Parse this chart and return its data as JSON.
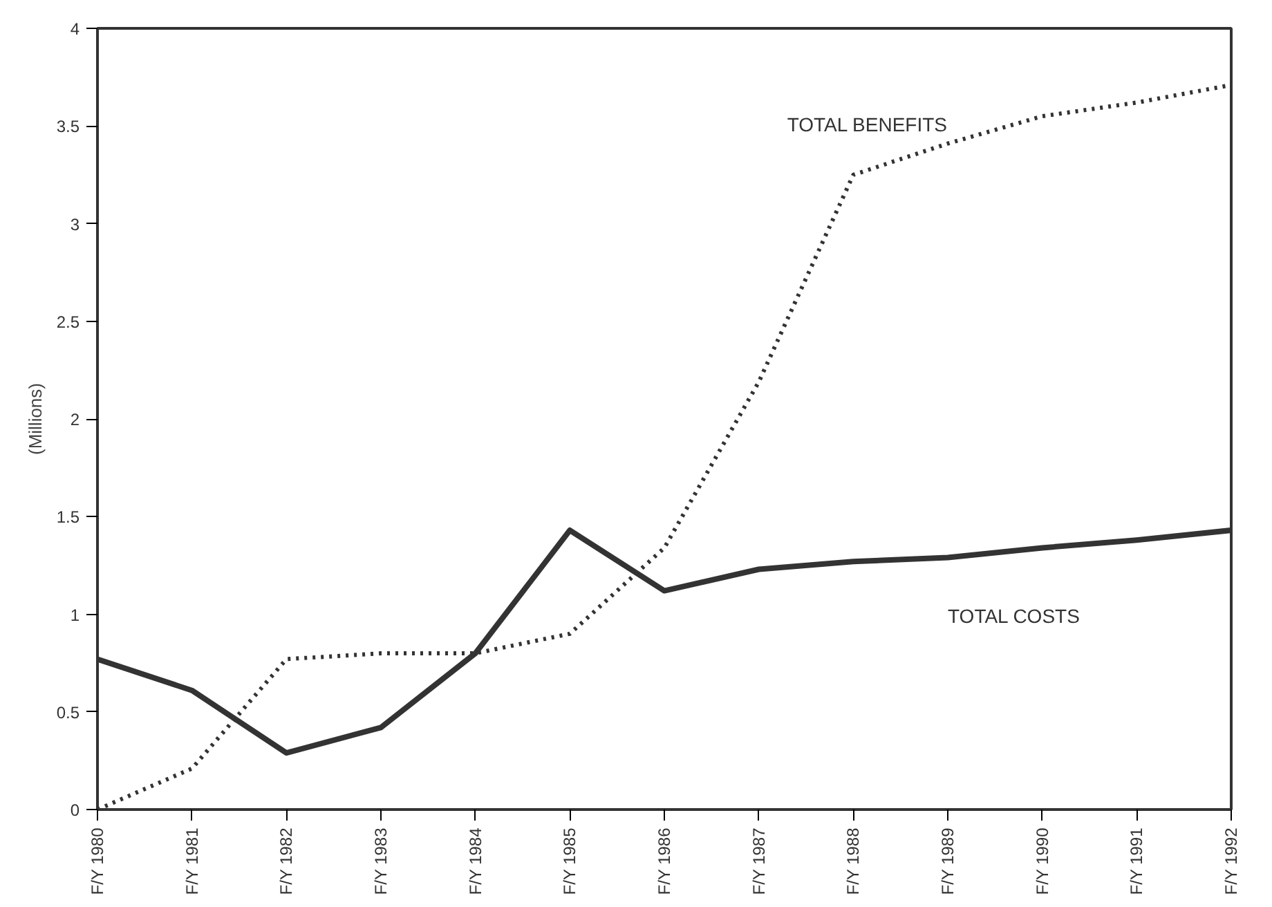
{
  "chart_data": {
    "type": "line",
    "ylabel": "(Millions)",
    "categories": [
      "F/Y 1980",
      "F/Y 1981",
      "F/Y 1982",
      "F/Y 1983",
      "F/Y 1984",
      "F/Y 1985",
      "F/Y 1986",
      "F/Y 1987",
      "F/Y 1988",
      "F/Y 1989",
      "F/Y 1990",
      "F/Y 1991",
      "F/Y 1992"
    ],
    "ylim": [
      0,
      4
    ],
    "yticks": [
      0,
      0.5,
      1,
      1.5,
      2,
      2.5,
      3,
      3.5,
      4
    ],
    "grid": false,
    "marker": "none",
    "series": [
      {
        "name": "TOTAL BENEFITS",
        "color": "#333333",
        "line_style": "dotted",
        "values": [
          0,
          0.21,
          0.77,
          0.8,
          0.8,
          0.9,
          1.34,
          2.19,
          3.25,
          3.41,
          3.55,
          3.62,
          3.71
        ]
      },
      {
        "name": "TOTAL COSTS",
        "color": "#333333",
        "line_style": "solid",
        "values": [
          0.77,
          0.61,
          0.29,
          0.42,
          0.8,
          1.43,
          1.12,
          1.23,
          1.27,
          1.29,
          1.34,
          1.38,
          1.43
        ]
      }
    ]
  }
}
